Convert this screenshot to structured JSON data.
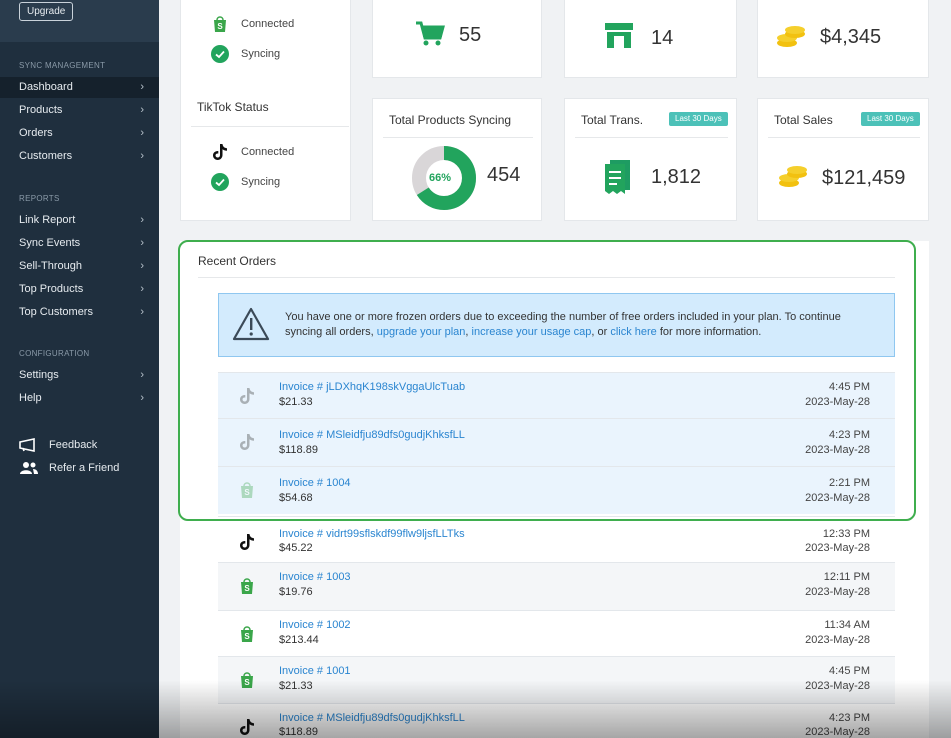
{
  "sidebar": {
    "upgrade_label": "Upgrade",
    "sections": {
      "sync": "SYNC MANAGEMENT",
      "reports": "REPORTS",
      "config": "CONFIGURATION"
    },
    "sync_items": [
      "Dashboard",
      "Products",
      "Orders",
      "Customers"
    ],
    "report_items": [
      "Link Report",
      "Sync Events",
      "Sell-Through",
      "Top Products",
      "Top Customers"
    ],
    "config_items": [
      "Settings",
      "Help"
    ],
    "footer": {
      "feedback": "Feedback",
      "refer": "Refer a Friend"
    },
    "chevron": "›"
  },
  "shopify_status": {
    "connected": "Connected",
    "syncing": "Syncing"
  },
  "tiktok_status": {
    "title": "TikTok Status",
    "connected": "Connected",
    "syncing": "Syncing"
  },
  "stats_top": {
    "products": "55",
    "stores": "14",
    "sales": "$4,345"
  },
  "stats": {
    "syncing_title": "Total Products Syncing",
    "syncing_percent": "66%",
    "syncing_percent_value": 66,
    "syncing_count": "454",
    "trans_title": "Total Trans.",
    "trans_badge": "Last 30 Days",
    "trans_value": "1,812",
    "sales_title": "Total Sales",
    "sales_badge": "Last 30 Days",
    "sales_value": "$121,459"
  },
  "recent_orders": {
    "title": "Recent Orders",
    "alert": {
      "text1": "You have one or more frozen orders due to exceeding the number of free orders included in your plan. To continue syncing all orders, ",
      "link1": "upgrade your plan",
      "sep1": ", ",
      "link2": "increase your usage cap",
      "sep2": ", or ",
      "link3": "click here",
      "text2": " for more information."
    },
    "orders": [
      {
        "invoice": "Invoice # jLDXhqK198skVggaUlcTuab",
        "amount": "$21.33",
        "time": "4:45 PM",
        "date": "2023-May-28",
        "source": "tiktok",
        "frozen": true
      },
      {
        "invoice": "Invoice # MSleidfju89dfs0gudjKhksfLL",
        "amount": "$118.89",
        "time": "4:23 PM",
        "date": "2023-May-28",
        "source": "tiktok",
        "frozen": true
      },
      {
        "invoice": "Invoice # 1004",
        "amount": "$54.68",
        "time": "2:21 PM",
        "date": "2023-May-28",
        "source": "shopify",
        "frozen": true
      },
      {
        "invoice": "Invoice # vidrt99sflskdf99flw9ljsfLLTks",
        "amount": "$45.22",
        "time": "12:33 PM",
        "date": "2023-May-28",
        "source": "tiktok",
        "frozen": false
      },
      {
        "invoice": "Invoice # 1003",
        "amount": "$19.76",
        "time": "12:11 PM",
        "date": "2023-May-28",
        "source": "shopify",
        "frozen": false
      },
      {
        "invoice": "Invoice # 1002",
        "amount": "$213.44",
        "time": "11:34 AM",
        "date": "2023-May-28",
        "source": "shopify",
        "frozen": false
      },
      {
        "invoice": "Invoice # 1001",
        "amount": "$21.33",
        "time": "4:45 PM",
        "date": "2023-May-28",
        "source": "shopify",
        "frozen": false
      },
      {
        "invoice": "Invoice # MSleidfju89dfs0gudjKhksfLL",
        "amount": "$118.89",
        "time": "4:23 PM",
        "date": "2023-May-28",
        "source": "tiktok",
        "frozen": false
      }
    ]
  },
  "colors": {
    "sidebar": "#1f2f3e",
    "accent_green": "#22a45d",
    "link_blue": "#2a85d0",
    "badge_teal": "#4cc1b8",
    "highlight": "#3fae4e"
  }
}
